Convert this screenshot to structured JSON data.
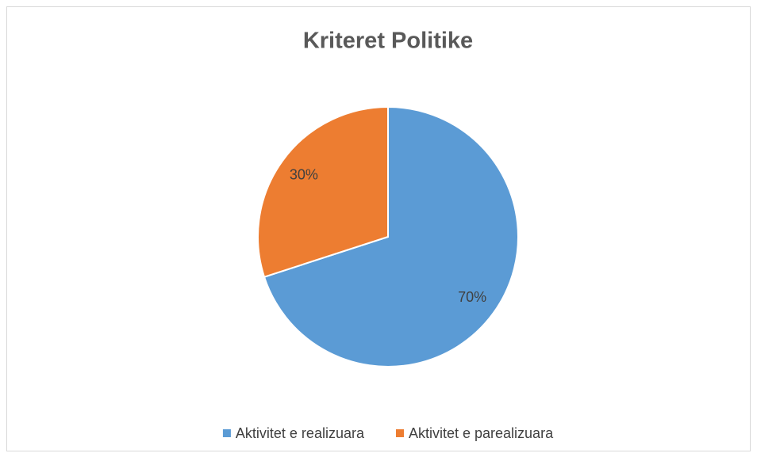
{
  "chart_data": {
    "type": "pie",
    "title": "Kriteret Politike",
    "categories": [
      "Aktivitet e realizuara",
      "Aktivitet e parealizuara"
    ],
    "values": [
      70,
      30
    ],
    "value_labels": [
      "70%",
      "30%"
    ],
    "colors": [
      "#5b9bd5",
      "#ed7d31"
    ],
    "legend": "bottom"
  }
}
